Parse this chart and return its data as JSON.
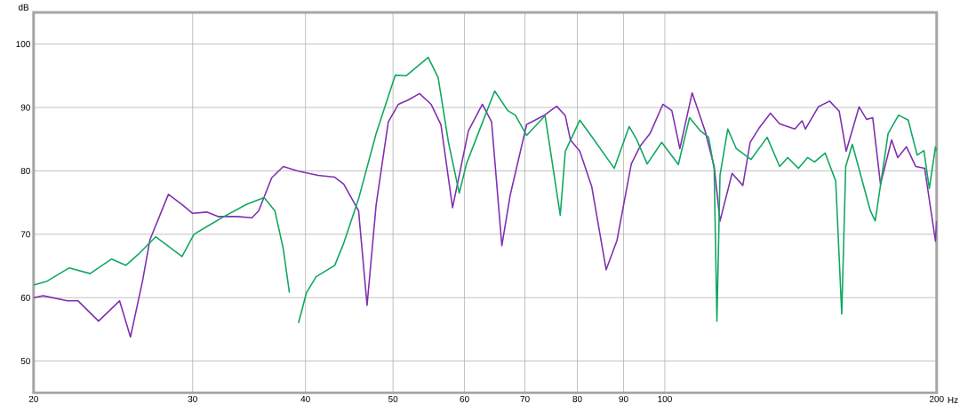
{
  "chart_data": {
    "type": "line",
    "xlabel": "Hz",
    "ylabel": "dB",
    "log": "x",
    "grid": true,
    "xlim": [
      20,
      200
    ],
    "ylim": [
      45,
      105
    ],
    "xticks": [
      20,
      30,
      40,
      50,
      60,
      70,
      80,
      90,
      100,
      200
    ],
    "yticks": [
      50,
      60,
      70,
      80,
      90,
      100
    ],
    "series": [
      {
        "color": "#8030b0",
        "x": [
          20,
          20.5,
          21.8,
          22.4,
          23.6,
          24.9,
          25.6,
          26.4,
          26.9,
          28.2,
          29.2,
          30,
          31.1,
          32,
          33.6,
          34.9,
          35.5,
          36.7,
          37.8,
          39.2,
          41.3,
          43.1,
          44.1,
          45.8,
          46.8,
          47.9,
          49.4,
          50.7,
          52,
          53.5,
          55.1,
          56.5,
          58.2,
          60.6,
          62.8,
          64.3,
          66,
          67.4,
          70.3,
          73.4,
          75.9,
          77.6,
          78.6,
          80.5,
          83,
          86.1,
          88.5,
          91.8,
          93.9,
          96.3,
          99.5,
          101.8,
          103.9,
          107.2,
          110.8,
          113.4,
          115.1,
          118.7,
          122,
          124.3,
          127.1,
          130.9,
          134,
          139.3,
          141.9,
          143.1,
          147.9,
          152.2,
          156,
          158.8,
          164.1,
          167.3,
          169.9,
          173.3,
          178.3,
          181.1,
          185.2,
          189.6,
          194,
          199.4,
          200
        ],
        "values": [
          60,
          60.3,
          59.5,
          59.5,
          56.3,
          59.5,
          53.8,
          62.6,
          69.1,
          76.3,
          74.7,
          73.3,
          73.5,
          72.8,
          72.8,
          72.6,
          73.7,
          78.9,
          80.7,
          80,
          79.3,
          79,
          77.9,
          73.7,
          58.8,
          74.7,
          87.7,
          90.5,
          91.2,
          92.2,
          90.5,
          87.3,
          74.2,
          86.3,
          90.5,
          87.7,
          68.2,
          76.1,
          87.3,
          88.7,
          90.2,
          88.7,
          84.9,
          83.1,
          77.5,
          64.4,
          69,
          81.1,
          83.9,
          85.9,
          90.5,
          89.5,
          83.5,
          92.3,
          86.3,
          80.7,
          72.1,
          79.6,
          77.7,
          84.5,
          86.7,
          89.1,
          87.4,
          86.6,
          87.9,
          86.6,
          90.1,
          91,
          89.4,
          83.1,
          90.1,
          88.1,
          88.4,
          77.9,
          84.9,
          82.1,
          83.8,
          80.7,
          80.4,
          68.9,
          72.1
        ]
      },
      {
        "color": "#10a860",
        "x": [
          20,
          20.7,
          21.9,
          23.1,
          24.4,
          25.3,
          26.1,
          27.3,
          29.2,
          30.1,
          31.1,
          32.5,
          34.4,
          36,
          37,
          37.8,
          38.4,
          38.6,
          39.1,
          39.3,
          40.1,
          41.1,
          43.1,
          44.1,
          45.8,
          47.9,
          50.3,
          51.7,
          54.7,
          56.1,
          57.6,
          59.2,
          60.3,
          61.9,
          64.8,
          67,
          68.3,
          70.3,
          73.7,
          76.6,
          77.6,
          80.5,
          83.5,
          87.9,
          91.3,
          93.1,
          95.6,
          99.2,
          103.5,
          106.5,
          109.5,
          111.8,
          113.4,
          114.2,
          115.1,
          117.4,
          120,
          124.6,
          129.8,
          134,
          136.8,
          140.6,
          143.9,
          146.5,
          150.5,
          154.6,
          157,
          158.6,
          161.3,
          168.9,
          171,
          176.7,
          181.5,
          186,
          190.3,
          193.6,
          196.3,
          199.4,
          200
        ],
        "values": [
          62,
          62.6,
          64.7,
          63.8,
          66.1,
          65.1,
          66.8,
          69.6,
          66.5,
          70,
          71.2,
          72.8,
          74.7,
          75.8,
          73.7,
          67.7,
          60.8,
          null,
          null,
          56,
          60.8,
          63.3,
          65.1,
          68.6,
          75.6,
          85.9,
          95.1,
          95,
          97.9,
          94.7,
          84.5,
          76.5,
          81.1,
          85.3,
          92.6,
          89.5,
          88.8,
          85.6,
          88.7,
          73,
          83.1,
          88,
          84.9,
          80.4,
          87,
          84.9,
          81.1,
          84.5,
          81,
          88.4,
          86.3,
          85.3,
          80.3,
          56.3,
          79.3,
          86.6,
          83.5,
          81.8,
          85.3,
          80.7,
          82.1,
          80.4,
          82.1,
          81.4,
          82.8,
          78.4,
          57.4,
          80.7,
          84.2,
          73.7,
          72.1,
          85.9,
          88.8,
          88,
          82.5,
          83.2,
          77.2,
          83.8,
          83.1
        ]
      }
    ]
  }
}
